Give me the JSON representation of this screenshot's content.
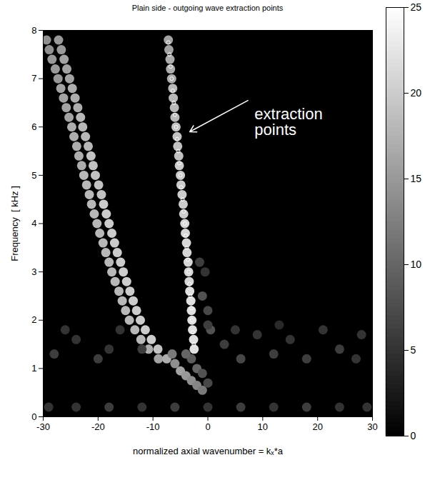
{
  "chart_data": {
    "type": "heatmap",
    "title": "Plain side - outgoing wave extraction points",
    "x_label": "normalized axial wavenumber = kₓ*a",
    "y_label": "Frequency  [ kHz ]",
    "xlim": [
      -30,
      30
    ],
    "xticks": [
      -30,
      -20,
      -10,
      0,
      10,
      20,
      30
    ],
    "ylim": [
      0,
      8
    ],
    "yticks": [
      0,
      1,
      2,
      3,
      4,
      5,
      6,
      7,
      8
    ],
    "colorbar": {
      "range": [
        0,
        25
      ],
      "ticks": [
        0,
        5,
        10,
        15,
        20,
        25
      ]
    },
    "cells": [
      [
        -9.0,
        1.2,
        16
      ],
      [
        -10.8,
        1.4,
        17
      ],
      [
        -12.2,
        1.6,
        18
      ],
      [
        -13.3,
        1.8,
        18
      ],
      [
        -14.3,
        2.0,
        18
      ],
      [
        -15.0,
        2.2,
        18
      ],
      [
        -15.6,
        2.4,
        18
      ],
      [
        -16.2,
        2.6,
        18
      ],
      [
        -16.9,
        2.8,
        18
      ],
      [
        -17.5,
        3.0,
        18
      ],
      [
        -18.0,
        3.2,
        18
      ],
      [
        -18.6,
        3.4,
        18
      ],
      [
        -19.1,
        3.6,
        18
      ],
      [
        -19.7,
        3.8,
        18
      ],
      [
        -20.2,
        4.0,
        18
      ],
      [
        -20.7,
        4.2,
        18
      ],
      [
        -21.2,
        4.4,
        18
      ],
      [
        -21.6,
        4.6,
        18
      ],
      [
        -22.1,
        4.8,
        18
      ],
      [
        -22.6,
        5.0,
        18
      ],
      [
        -23.0,
        5.2,
        17
      ],
      [
        -23.5,
        5.4,
        17
      ],
      [
        -23.9,
        5.6,
        17
      ],
      [
        -24.4,
        5.8,
        17
      ],
      [
        -24.8,
        6.0,
        17
      ],
      [
        -25.3,
        6.2,
        16
      ],
      [
        -25.8,
        6.4,
        16
      ],
      [
        -26.3,
        6.6,
        16
      ],
      [
        -26.8,
        6.8,
        16
      ],
      [
        -27.3,
        7.0,
        15
      ],
      [
        -27.8,
        7.2,
        15
      ],
      [
        -28.4,
        7.4,
        15
      ],
      [
        -28.9,
        7.6,
        14
      ],
      [
        -29.4,
        7.8,
        14
      ],
      [
        -7.5,
        1.2,
        17
      ],
      [
        -9.1,
        1.4,
        19
      ],
      [
        -10.3,
        1.6,
        20
      ],
      [
        -11.4,
        1.8,
        20
      ],
      [
        -12.3,
        2.0,
        20
      ],
      [
        -13.0,
        2.2,
        20
      ],
      [
        -13.6,
        2.4,
        20
      ],
      [
        -14.2,
        2.6,
        20
      ],
      [
        -14.8,
        2.8,
        20
      ],
      [
        -15.4,
        3.0,
        20
      ],
      [
        -15.9,
        3.2,
        20
      ],
      [
        -16.5,
        3.4,
        20
      ],
      [
        -17.0,
        3.6,
        20
      ],
      [
        -17.5,
        3.8,
        20
      ],
      [
        -18.0,
        4.0,
        20
      ],
      [
        -18.5,
        4.2,
        20
      ],
      [
        -19.0,
        4.4,
        20
      ],
      [
        -19.4,
        4.6,
        19
      ],
      [
        -19.9,
        4.8,
        19
      ],
      [
        -20.5,
        5.0,
        19
      ],
      [
        -20.9,
        5.2,
        19
      ],
      [
        -21.3,
        5.4,
        19
      ],
      [
        -21.8,
        5.6,
        18
      ],
      [
        -22.3,
        5.8,
        18
      ],
      [
        -22.8,
        6.0,
        18
      ],
      [
        -23.2,
        6.2,
        18
      ],
      [
        -23.7,
        6.4,
        17
      ],
      [
        -24.2,
        6.6,
        17
      ],
      [
        -24.7,
        6.8,
        17
      ],
      [
        -25.2,
        7.0,
        16
      ],
      [
        -25.7,
        7.2,
        16
      ],
      [
        -26.2,
        7.4,
        16
      ],
      [
        -26.7,
        7.6,
        15
      ],
      [
        -27.2,
        7.8,
        15
      ],
      [
        -2.5,
        1.4,
        22
      ],
      [
        -2.6,
        1.6,
        22
      ],
      [
        -2.8,
        1.8,
        22
      ],
      [
        -2.9,
        2.0,
        22
      ],
      [
        -3.0,
        2.2,
        22
      ],
      [
        -3.1,
        2.4,
        22
      ],
      [
        -3.3,
        2.6,
        22
      ],
      [
        -3.4,
        2.8,
        21
      ],
      [
        -3.5,
        3.0,
        21
      ],
      [
        -3.6,
        3.2,
        21
      ],
      [
        -3.8,
        3.4,
        21
      ],
      [
        -3.9,
        3.6,
        21
      ],
      [
        -4.1,
        3.8,
        21
      ],
      [
        -4.2,
        4.0,
        21
      ],
      [
        -4.4,
        4.2,
        20
      ],
      [
        -4.5,
        4.4,
        20
      ],
      [
        -4.7,
        4.6,
        20
      ],
      [
        -4.9,
        4.8,
        20
      ],
      [
        -5.0,
        5.0,
        20
      ],
      [
        -5.2,
        5.2,
        20
      ],
      [
        -5.3,
        5.4,
        19
      ],
      [
        -5.5,
        5.6,
        19
      ],
      [
        -5.6,
        5.8,
        19
      ],
      [
        -5.8,
        6.0,
        19
      ],
      [
        -6.0,
        6.2,
        18
      ],
      [
        -6.1,
        6.4,
        18
      ],
      [
        -6.3,
        6.6,
        18
      ],
      [
        -6.4,
        6.8,
        18
      ],
      [
        -6.6,
        7.0,
        17
      ],
      [
        -6.8,
        7.2,
        17
      ],
      [
        -6.9,
        7.4,
        17
      ],
      [
        -7.1,
        7.6,
        16
      ],
      [
        -7.2,
        7.8,
        16
      ],
      [
        -1.0,
        2.5,
        8
      ],
      [
        0.0,
        2.2,
        7
      ],
      [
        -1.5,
        3.2,
        6
      ],
      [
        0.5,
        1.8,
        8
      ],
      [
        -0.5,
        3.0,
        5
      ],
      [
        -6.0,
        1.1,
        14
      ],
      [
        -5.0,
        0.95,
        16
      ],
      [
        -4.0,
        0.85,
        15
      ],
      [
        -3.0,
        0.75,
        14
      ],
      [
        -2.0,
        0.65,
        13
      ],
      [
        -1.0,
        0.55,
        12
      ],
      [
        -2.0,
        1.0,
        10
      ],
      [
        -3.0,
        1.2,
        9
      ],
      [
        -1.0,
        0.9,
        8
      ],
      [
        0.0,
        0.7,
        7
      ],
      [
        -4.0,
        1.3,
        10
      ],
      [
        -6.5,
        1.3,
        12
      ],
      [
        -28,
        1.3,
        6
      ],
      [
        -24,
        1.6,
        5
      ],
      [
        -20,
        1.2,
        6
      ],
      [
        -16,
        1.8,
        5
      ],
      [
        -12,
        1.4,
        6
      ],
      [
        3,
        1.5,
        6
      ],
      [
        6,
        1.2,
        7
      ],
      [
        9,
        1.7,
        5
      ],
      [
        12,
        1.3,
        6
      ],
      [
        15,
        1.6,
        5
      ],
      [
        18,
        1.2,
        6
      ],
      [
        21,
        1.8,
        5
      ],
      [
        24,
        1.4,
        6
      ],
      [
        27,
        1.2,
        5
      ],
      [
        -26,
        1.8,
        5
      ],
      [
        0,
        1.9,
        6
      ],
      [
        5,
        1.8,
        5
      ],
      [
        -18,
        1.4,
        5
      ],
      [
        13,
        1.9,
        4
      ],
      [
        28,
        1.7,
        5
      ],
      [
        -29,
        0.2,
        5
      ],
      [
        -24,
        0.2,
        5
      ],
      [
        -18,
        0.2,
        6
      ],
      [
        -12,
        0.2,
        5
      ],
      [
        -6,
        0.2,
        6
      ],
      [
        0,
        0.2,
        5
      ],
      [
        6,
        0.2,
        6
      ],
      [
        12,
        0.2,
        5
      ],
      [
        18,
        0.2,
        6
      ],
      [
        24,
        0.2,
        5
      ],
      [
        29,
        0.2,
        5
      ]
    ],
    "points": {
      "marker": "circle",
      "color": "white",
      "x": [
        -2.55,
        -2.75,
        -2.9,
        -3.0,
        -3.2,
        -3.35,
        -3.5,
        -3.65,
        -3.85,
        -4.05,
        -4.2,
        -4.4,
        -4.6,
        -4.85,
        -5.0,
        -5.2,
        -5.4,
        -5.6,
        -5.8,
        -6.0,
        -6.2,
        -6.4,
        -6.6,
        -6.8,
        -7.0,
        -7.2
      ],
      "y": [
        1.5,
        1.75,
        2.0,
        2.25,
        2.5,
        2.75,
        3.0,
        3.25,
        3.5,
        3.75,
        4.0,
        4.25,
        4.5,
        4.75,
        5.0,
        5.25,
        5.5,
        5.75,
        6.0,
        6.25,
        6.5,
        6.75,
        7.0,
        7.25,
        7.5,
        7.75
      ]
    },
    "annotations": [
      {
        "text": "extraction points",
        "x": 8.5,
        "y": 6.1,
        "arrow_from": [
          7.3,
          6.55
        ],
        "arrow_to": [
          -3.3,
          5.9
        ]
      }
    ]
  }
}
